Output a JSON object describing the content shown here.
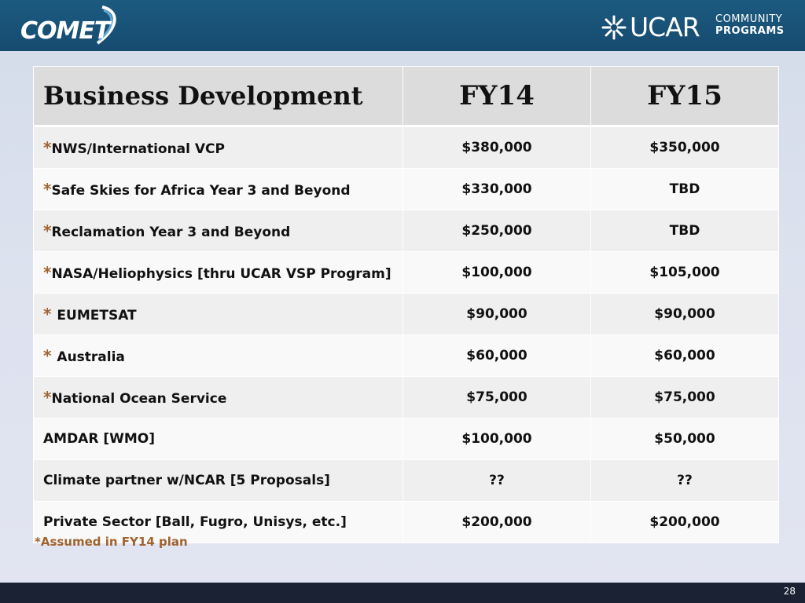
{
  "header": {
    "left_logo_text": "COMET",
    "right_logo_text": "UCAR",
    "right_logo_line1": "COMMUNITY",
    "right_logo_line2": "PROGRAMS"
  },
  "table": {
    "headers": [
      "Business Development",
      "FY14",
      "FY15"
    ],
    "rows": [
      {
        "star": "*",
        "label": "NWS/International VCP",
        "fy14": "$380,000",
        "fy15": "$350,000"
      },
      {
        "star": "*",
        "label": "Safe Skies for Africa Year 3 and Beyond",
        "fy14": "$330,000",
        "fy15": "TBD"
      },
      {
        "star": "*",
        "label": "Reclamation Year 3 and Beyond",
        "fy14": "$250,000",
        "fy15": "TBD"
      },
      {
        "star": "*",
        "label": "NASA/Heliophysics [thru UCAR VSP Program]",
        "fy14": "$100,000",
        "fy15": "$105,000"
      },
      {
        "star": "* ",
        "label": "EUMETSAT",
        "fy14": "$90,000",
        "fy15": "$90,000"
      },
      {
        "star": "* ",
        "label": "Australia",
        "fy14": "$60,000",
        "fy15": "$60,000"
      },
      {
        "star": "*",
        "label": "National Ocean Service",
        "fy14": "$75,000",
        "fy15": "$75,000"
      },
      {
        "star": "",
        "label": "AMDAR [WMO]",
        "fy14": "$100,000",
        "fy15": "$50,000"
      },
      {
        "star": "",
        "label": "Climate partner w/NCAR [5 Proposals]",
        "fy14": "??",
        "fy15": "??"
      },
      {
        "star": "",
        "label": "Private Sector [Ball, Fugro, Unisys, etc.]",
        "fy14": "$200,000",
        "fy15": "$200,000"
      }
    ]
  },
  "footnote": "*Assumed in FY14 plan",
  "page_number": "28",
  "colors": {
    "header_bg": "#1c5a80",
    "footer_bg": "#1a2233",
    "accent_star": "#a0632f"
  }
}
